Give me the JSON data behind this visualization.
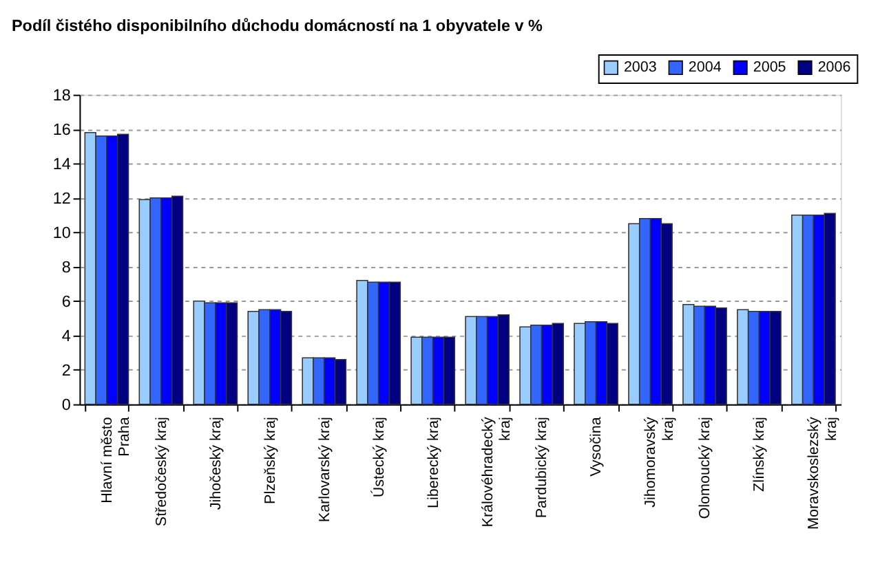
{
  "chart_data": {
    "type": "bar",
    "title": "Podíl čistého disponibilního důchodu domácností na 1 obyvatele v %",
    "categories": [
      "Hlavní město Praha",
      "Středočeský kraj",
      "Jihočeský kraj",
      "Plzeňský kraj",
      "Karlovarský kraj",
      "Ústecký kraj",
      "Liberecký kraj",
      "Královéhradecký kraj",
      "Pardubický kraj",
      "Vysočina",
      "Jihomoravský kraj",
      "Olomoucký kraj",
      "Zlínský kraj",
      "Moravskoslezský kraj"
    ],
    "series": [
      {
        "name": "2003",
        "color": "#99ccff",
        "values": [
          15.8,
          11.9,
          6.0,
          5.4,
          2.7,
          7.2,
          3.9,
          5.1,
          4.5,
          4.7,
          10.5,
          5.8,
          5.5,
          11.0
        ]
      },
      {
        "name": "2004",
        "color": "#3366ff",
        "values": [
          15.6,
          12.0,
          5.9,
          5.5,
          2.7,
          7.1,
          3.9,
          5.1,
          4.6,
          4.8,
          10.8,
          5.7,
          5.4,
          11.0
        ]
      },
      {
        "name": "2005",
        "color": "#0000ff",
        "values": [
          15.6,
          12.0,
          5.9,
          5.5,
          2.7,
          7.1,
          3.9,
          5.1,
          4.6,
          4.8,
          10.8,
          5.7,
          5.4,
          11.0
        ]
      },
      {
        "name": "2006",
        "color": "#000080",
        "values": [
          15.7,
          12.1,
          5.9,
          5.4,
          2.6,
          7.1,
          3.9,
          5.2,
          4.7,
          4.7,
          10.5,
          5.6,
          5.4,
          11.1
        ]
      }
    ],
    "ylim": [
      0,
      18
    ],
    "yticks": [
      0,
      2,
      4,
      6,
      8,
      10,
      12,
      14,
      16,
      18
    ],
    "grid": "y",
    "legend": "top right"
  }
}
